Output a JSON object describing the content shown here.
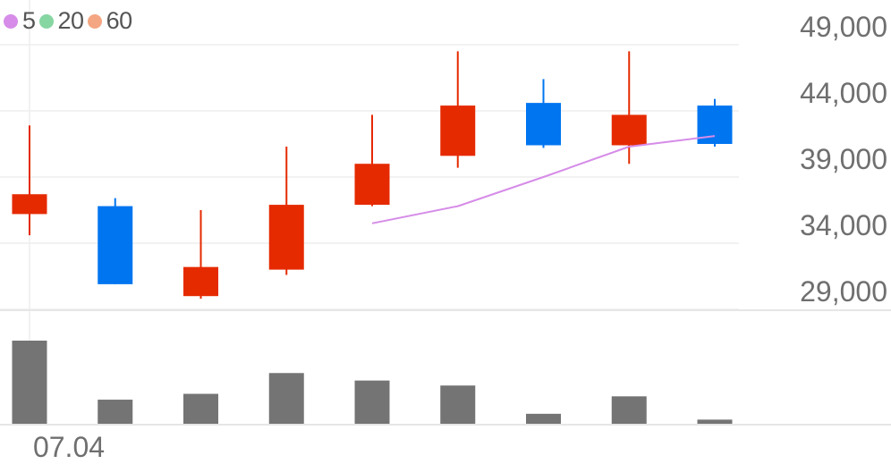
{
  "legend": [
    {
      "label": "5",
      "color": "#d68ce8"
    },
    {
      "label": "20",
      "color": "#86d6a2"
    },
    {
      "label": "60",
      "color": "#f4a582"
    }
  ],
  "chart_data": {
    "type": "candlestick",
    "y_ticks": [
      "49,000",
      "44,000",
      "39,000",
      "34,000",
      "29,000"
    ],
    "y_tick_values": [
      49000,
      44000,
      39000,
      34000,
      29000
    ],
    "x_tick_labels": [
      {
        "index": 0,
        "label": "07.04"
      }
    ],
    "candles": [
      {
        "open": 36200,
        "close": 37700,
        "high": 42900,
        "low": 34600
      },
      {
        "open": 36800,
        "close": 30900,
        "high": 37400,
        "low": 30900
      },
      {
        "open": 30000,
        "close": 32200,
        "high": 36500,
        "low": 29800
      },
      {
        "open": 32000,
        "close": 36900,
        "high": 41300,
        "low": 31600
      },
      {
        "open": 36900,
        "close": 40000,
        "high": 43700,
        "low": 36800
      },
      {
        "open": 40600,
        "close": 44400,
        "high": 48500,
        "low": 39700
      },
      {
        "open": 44600,
        "close": 41400,
        "high": 46400,
        "low": 41200
      },
      {
        "open": 41400,
        "close": 43700,
        "high": 48500,
        "low": 40000
      },
      {
        "open": 44400,
        "close": 41500,
        "high": 44900,
        "low": 41300
      }
    ],
    "ma5": [
      null,
      null,
      null,
      null,
      35500,
      36800,
      39000,
      41300,
      42100
    ],
    "volume": [
      100,
      29,
      36,
      61,
      52,
      46,
      12,
      33,
      5
    ],
    "colors": {
      "up": "#e52a00",
      "down": "#0075f0",
      "ma5": "#d68ce8",
      "volume": "#747474"
    }
  }
}
